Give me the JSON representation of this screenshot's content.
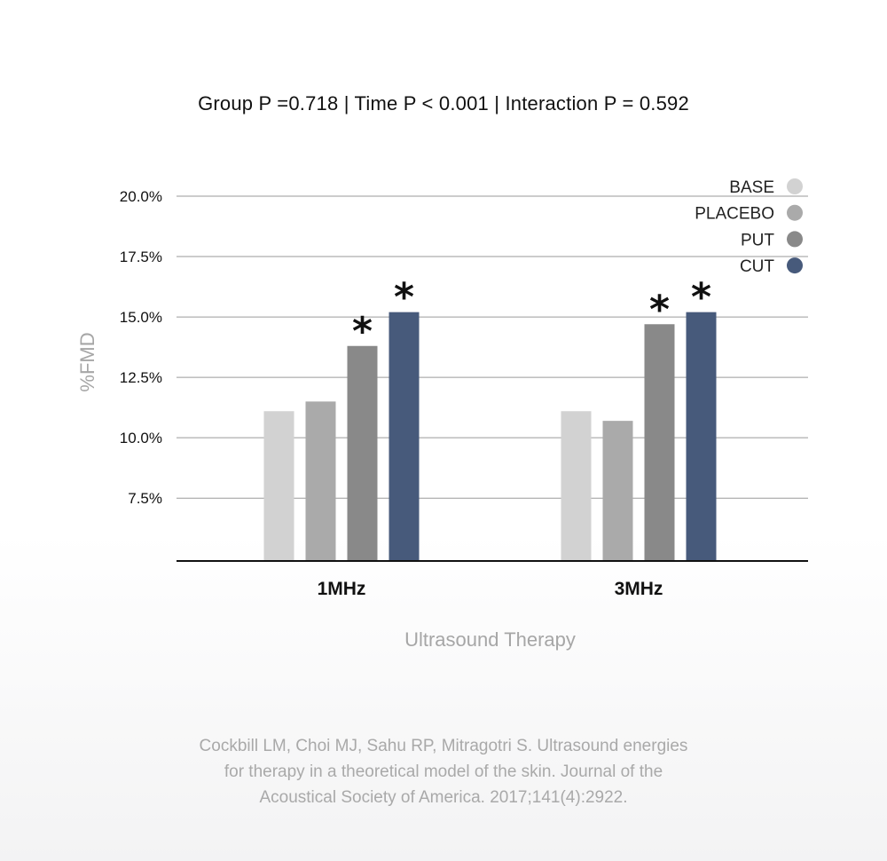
{
  "stats_line": "Group P =0.718  |   Time P < 0.001  |  Interaction P = 0.592",
  "citation": {
    "lines": [
      "Cockbill LM, Choi MJ, Sahu RP, Mitragotri S. Ultrasound energies",
      "for therapy in a theoretical model of the skin. Journal of the",
      "Acoustical Society of America. 2017;141(4):2922."
    ]
  },
  "colors": {
    "BASE": "#d2d2d2",
    "PLACEBO": "#aaaaaa",
    "PUT": "#898989",
    "CUT": "#475a7b",
    "grid": "#9a9a9a",
    "axis": "#111111"
  },
  "chart_data": {
    "type": "bar",
    "title": "",
    "xlabel": "Ultrasound Therapy",
    "ylabel": "%FMD",
    "categories": [
      "1MHz",
      "3MHz"
    ],
    "series": [
      {
        "name": "BASE",
        "values": [
          11.1,
          11.1
        ]
      },
      {
        "name": "PLACEBO",
        "values": [
          11.5,
          10.7
        ]
      },
      {
        "name": "PUT",
        "values": [
          13.8,
          14.7
        ]
      },
      {
        "name": "CUT",
        "values": [
          15.2,
          15.2
        ]
      }
    ],
    "significance": [
      {
        "series": "PUT",
        "category": "1MHz",
        "label": "*"
      },
      {
        "series": "CUT",
        "category": "1MHz",
        "label": "*"
      },
      {
        "series": "PUT",
        "category": "3MHz",
        "label": "*"
      },
      {
        "series": "CUT",
        "category": "3MHz",
        "label": "*"
      }
    ],
    "ylim": [
      4.9,
      20.0
    ],
    "yticks": [
      7.5,
      10.0,
      12.5,
      15.0,
      17.5,
      20.0
    ],
    "ytick_labels": [
      "7.5%",
      "10.0%",
      "12.5%",
      "15.0%",
      "17.5%",
      "20.0%"
    ],
    "grid": true,
    "legend_position": "top-right"
  }
}
